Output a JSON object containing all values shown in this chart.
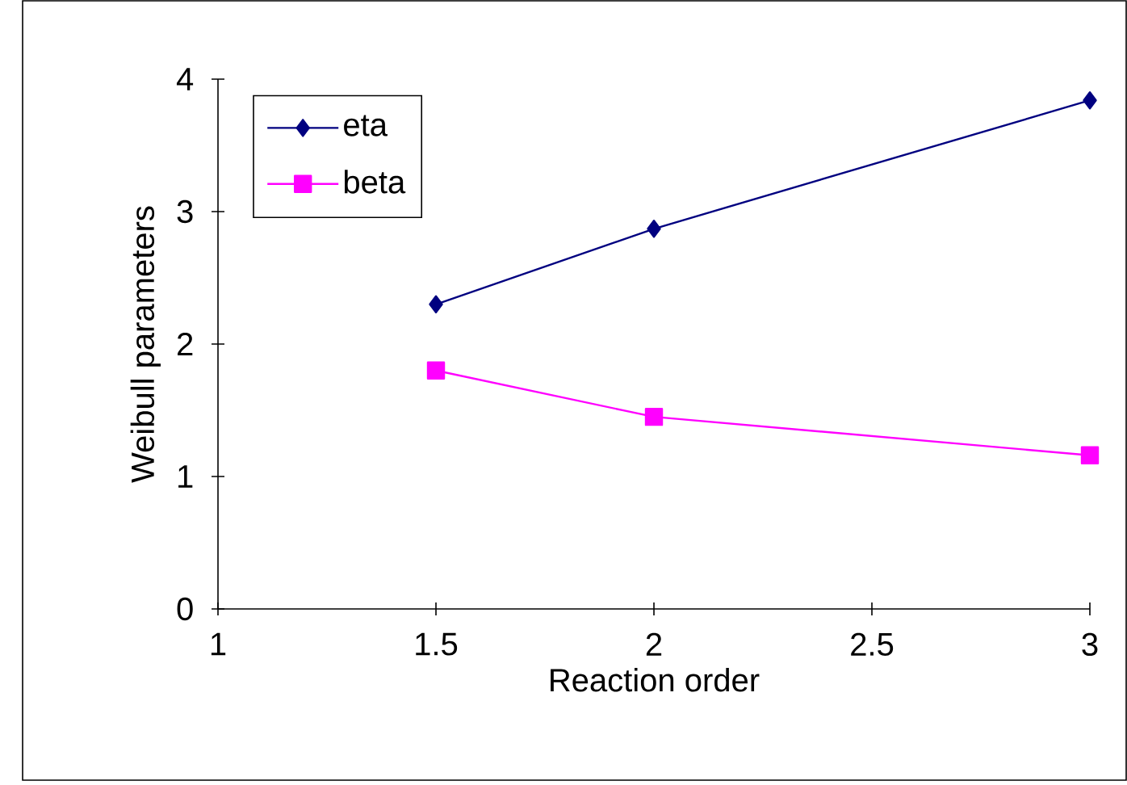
{
  "chart_data": {
    "type": "line",
    "xlabel": "Reaction order",
    "ylabel": "Weibull parameters",
    "x": [
      1.5,
      2,
      3
    ],
    "series": [
      {
        "name": "eta",
        "color": "#000080",
        "values": [
          2.3,
          2.87,
          3.84
        ],
        "marker": "diamond"
      },
      {
        "name": "beta",
        "color": "#ff00ff",
        "values": [
          1.8,
          1.45,
          1.16
        ],
        "marker": "square"
      }
    ],
    "xlim": [
      1,
      3
    ],
    "ylim": [
      0,
      4
    ],
    "xticks": [
      1,
      1.5,
      2,
      2.5,
      3
    ],
    "yticks": [
      0,
      1,
      2,
      3,
      4
    ],
    "grid": false,
    "legend": "top left",
    "line_style": "solid"
  }
}
